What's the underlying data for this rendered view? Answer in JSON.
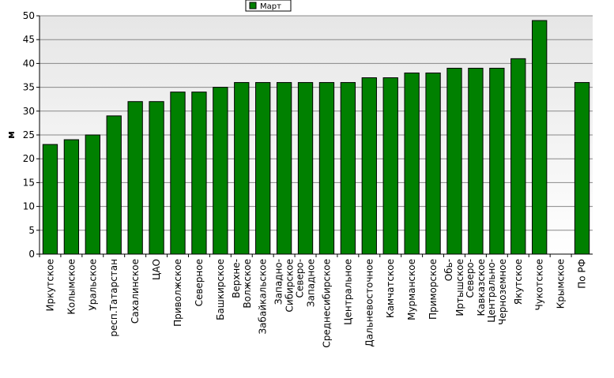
{
  "chart_data": {
    "type": "bar",
    "title": "",
    "xlabel": "",
    "ylabel": "м",
    "ylim": [
      0,
      50
    ],
    "yticks": [
      0,
      5,
      10,
      15,
      20,
      25,
      30,
      35,
      40,
      45,
      50
    ],
    "grid": true,
    "legend_position": "top-center",
    "categories": [
      "Иркутское",
      "Колымское",
      "Уральское",
      "респ.Татарстан",
      "Сахалинское",
      "ЦАО",
      "Приволжское",
      "Северное",
      "Башкирское",
      "Верхне-Волжское",
      "Забайкальское",
      "Западно-Сибирское",
      "Северо-Западное",
      "Среднесибирское",
      "Центральное",
      "Дальневосточное",
      "Камчатское",
      "Мурманское",
      "Приморское",
      "Обь-Иртышское",
      "Северо-Кавказское",
      "Центрально-Черноземное",
      "Якутское",
      "Чукотское",
      "Крымское",
      "По РФ"
    ],
    "series": [
      {
        "name": "Март",
        "color": "#008000",
        "values": [
          23,
          24,
          25,
          29,
          32,
          32,
          34,
          34,
          35,
          36,
          36,
          36,
          36,
          36,
          36,
          37,
          37,
          38,
          38,
          39,
          39,
          39,
          41,
          49,
          0,
          36
        ]
      }
    ]
  }
}
